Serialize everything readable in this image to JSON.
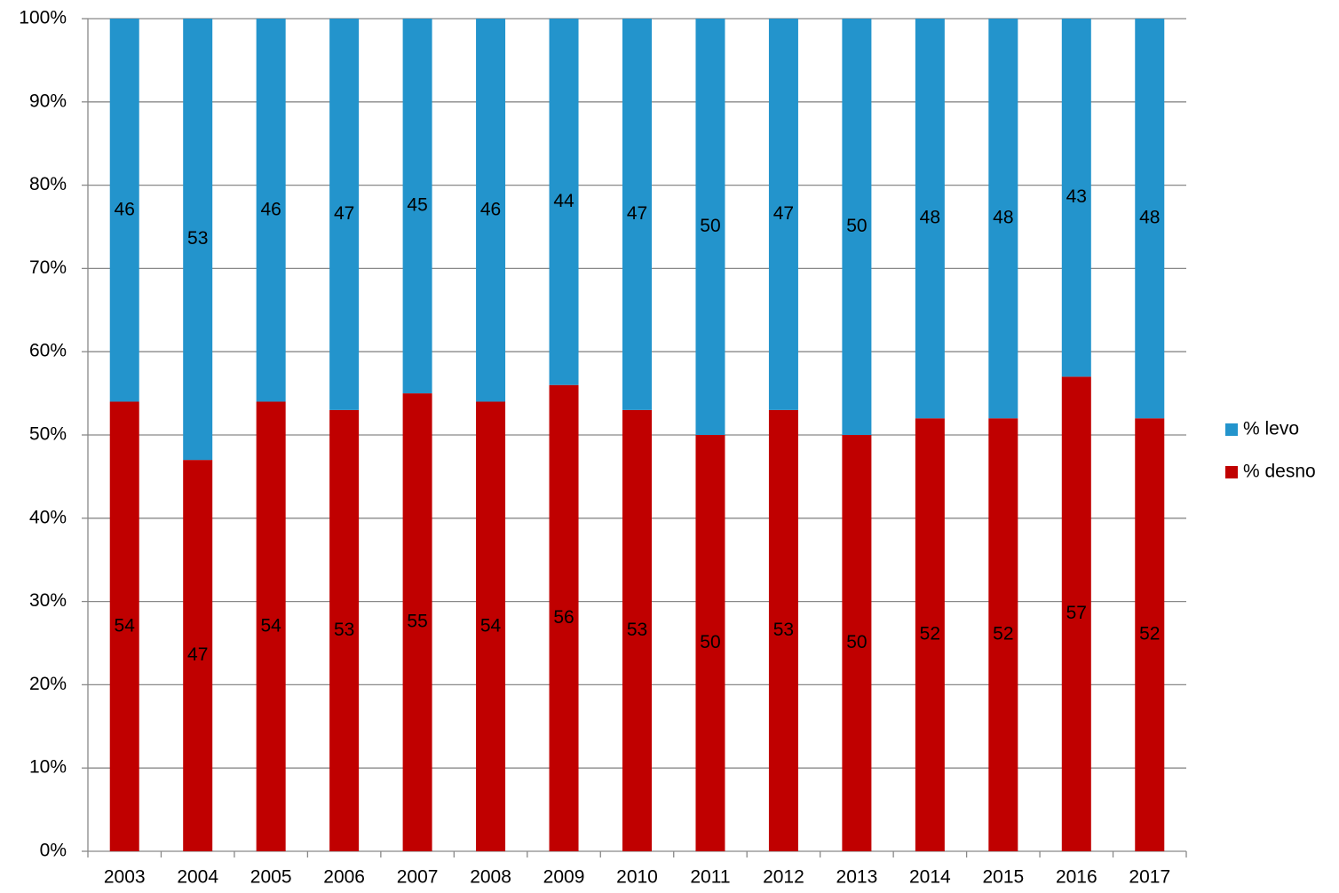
{
  "chart_data": {
    "type": "stacked_bar",
    "categories": [
      "2003",
      "2004",
      "2005",
      "2006",
      "2007",
      "2008",
      "2009",
      "2010",
      "2011",
      "2012",
      "2013",
      "2014",
      "2015",
      "2016",
      "2017"
    ],
    "series": [
      {
        "name": "% levo",
        "color": "#2394cc",
        "values": [
          46,
          53,
          46,
          47,
          45,
          46,
          44,
          47,
          50,
          47,
          50,
          48,
          48,
          43,
          48
        ]
      },
      {
        "name": "% desno",
        "color": "#c00000",
        "values": [
          54,
          47,
          54,
          53,
          55,
          54,
          56,
          53,
          50,
          53,
          50,
          52,
          52,
          57,
          52
        ]
      }
    ],
    "ylim": [
      0,
      100
    ],
    "yticks": [
      {
        "value": 0,
        "label": "0%"
      },
      {
        "value": 10,
        "label": "10%"
      },
      {
        "value": 20,
        "label": "20%"
      },
      {
        "value": 30,
        "label": "30%"
      },
      {
        "value": 40,
        "label": "40%"
      },
      {
        "value": 50,
        "label": "50%"
      },
      {
        "value": 60,
        "label": "60%"
      },
      {
        "value": 70,
        "label": "70%"
      },
      {
        "value": 80,
        "label": "80%"
      },
      {
        "value": 90,
        "label": "90%"
      },
      {
        "value": 100,
        "label": "100%"
      }
    ],
    "grid": true,
    "legend": "right"
  }
}
